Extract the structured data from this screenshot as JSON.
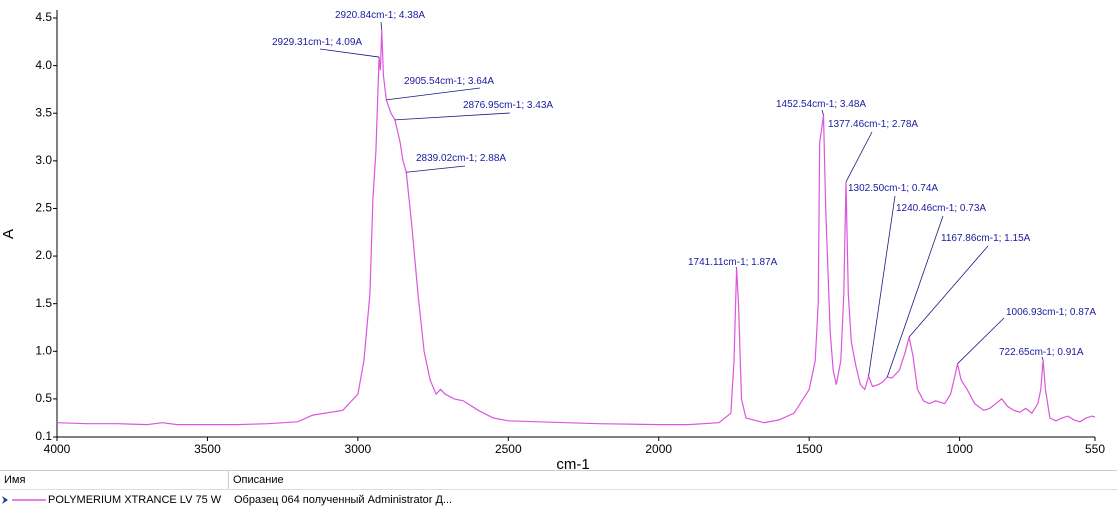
{
  "chart_data": {
    "type": "line",
    "xlabel": "cm-1",
    "ylabel": "A",
    "xlim": [
      4000,
      550
    ],
    "xticks": [
      4000,
      3500,
      3000,
      2500,
      2000,
      1500,
      1000,
      550
    ],
    "ylim": [
      0.1,
      4.5
    ],
    "yticks": [
      0.1,
      0.5,
      {
        "value": 1,
        "label": "1.0"
      },
      1.5,
      {
        "value": 2,
        "label": "2.0"
      },
      2.5,
      {
        "value": 3,
        "label": "3.0"
      },
      3.5,
      {
        "value": 4,
        "label": "4.0"
      },
      4.5
    ],
    "x": [
      4000,
      3900,
      3800,
      3700,
      3650,
      3600,
      3500,
      3400,
      3300,
      3200,
      3150,
      3050,
      3000,
      2980,
      2960,
      2950,
      2940,
      2929.31,
      2925,
      2920.84,
      2915,
      2905.54,
      2890,
      2876.95,
      2860,
      2850,
      2839.02,
      2820,
      2800,
      2780,
      2760,
      2740,
      2725,
      2710,
      2680,
      2650,
      2600,
      2550,
      2500,
      2400,
      2200,
      2000,
      1900,
      1800,
      1760,
      1750,
      1741.11,
      1735,
      1725,
      1710,
      1650,
      1600,
      1550,
      1500,
      1480,
      1470,
      1465,
      1460,
      1452.54,
      1445,
      1430,
      1420,
      1410,
      1395,
      1385,
      1377.46,
      1370,
      1360,
      1345,
      1330,
      1315,
      1302.5,
      1290,
      1270,
      1255,
      1240.46,
      1225,
      1200,
      1180,
      1167.86,
      1155,
      1140,
      1120,
      1100,
      1080,
      1050,
      1030,
      1015,
      1006.93,
      995,
      975,
      950,
      920,
      900,
      880,
      860,
      840,
      820,
      800,
      780,
      760,
      740,
      730,
      722.65,
      715,
      700,
      680,
      660,
      640,
      620,
      600,
      580,
      560,
      550
    ],
    "series": [
      {
        "name": "POLYMERIUM XTRANCE LV 75 W",
        "color": "#dd55dd",
        "values": [
          0.25,
          0.24,
          0.24,
          0.23,
          0.25,
          0.23,
          0.23,
          0.23,
          0.24,
          0.26,
          0.33,
          0.38,
          0.55,
          0.9,
          1.6,
          2.6,
          3.1,
          4.09,
          3.95,
          4.38,
          3.9,
          3.64,
          3.5,
          3.43,
          3.2,
          3.0,
          2.88,
          2.3,
          1.6,
          1.0,
          0.7,
          0.55,
          0.6,
          0.55,
          0.5,
          0.48,
          0.38,
          0.3,
          0.27,
          0.26,
          0.24,
          0.23,
          0.23,
          0.25,
          0.35,
          0.9,
          1.87,
          1.5,
          0.5,
          0.3,
          0.25,
          0.28,
          0.35,
          0.6,
          0.9,
          1.5,
          3.2,
          3.3,
          3.48,
          2.5,
          1.2,
          0.8,
          0.65,
          0.9,
          1.6,
          2.78,
          1.6,
          1.1,
          0.85,
          0.65,
          0.6,
          0.74,
          0.63,
          0.65,
          0.68,
          0.73,
          0.72,
          0.8,
          1.0,
          1.15,
          0.95,
          0.6,
          0.48,
          0.45,
          0.48,
          0.45,
          0.55,
          0.75,
          0.87,
          0.7,
          0.6,
          0.45,
          0.38,
          0.4,
          0.45,
          0.5,
          0.42,
          0.38,
          0.36,
          0.4,
          0.35,
          0.45,
          0.6,
          0.91,
          0.6,
          0.3,
          0.27,
          0.3,
          0.32,
          0.28,
          0.26,
          0.3,
          0.32,
          0.31
        ]
      }
    ],
    "annotations": [
      {
        "text": "2920.84cm-1; 4.38A",
        "x": 2920.84,
        "y": 4.38
      },
      {
        "text": "2929.31cm-1; 4.09A",
        "x": 2929.31,
        "y": 4.09
      },
      {
        "text": "2905.54cm-1; 3.64A",
        "x": 2905.54,
        "y": 3.64
      },
      {
        "text": "2876.95cm-1; 3.43A",
        "x": 2876.95,
        "y": 3.43
      },
      {
        "text": "2839.02cm-1; 2.88A",
        "x": 2839.02,
        "y": 2.88
      },
      {
        "text": "1452.54cm-1; 3.48A",
        "x": 1452.54,
        "y": 3.48
      },
      {
        "text": "1377.46cm-1; 2.78A",
        "x": 1377.46,
        "y": 2.78
      },
      {
        "text": "1302.50cm-1; 0.74A",
        "x": 1302.5,
        "y": 0.74
      },
      {
        "text": "1240.46cm-1; 0.73A",
        "x": 1240.46,
        "y": 0.73
      },
      {
        "text": "1167.86cm-1; 1.15A",
        "x": 1167.86,
        "y": 1.15
      },
      {
        "text": "1006.93cm-1; 0.87A",
        "x": 1006.93,
        "y": 0.87
      },
      {
        "text": "722.65cm-1; 0.91A",
        "x": 722.65,
        "y": 0.91
      },
      {
        "text": "1741.11cm-1; 1.87A",
        "x": 1741.11,
        "y": 1.87
      }
    ]
  },
  "table": {
    "columns": [
      "Имя",
      "Описание"
    ],
    "description": "Образец 064 полученный Administrator Д..."
  }
}
